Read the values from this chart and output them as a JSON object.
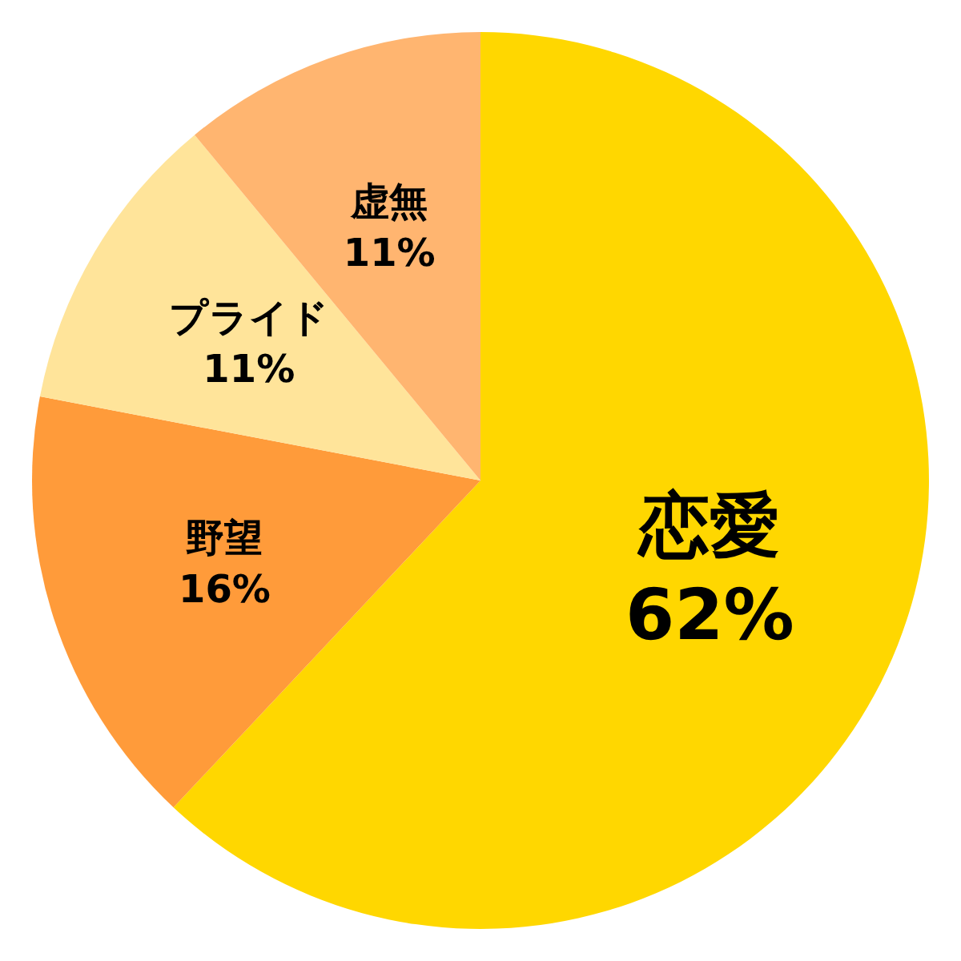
{
  "chart_data": {
    "type": "pie",
    "categories": [
      "恋愛",
      "野望",
      "プライド",
      "虚無"
    ],
    "values": [
      62,
      16,
      11,
      11
    ],
    "colors": [
      "#ffd700",
      "#ff9b3a",
      "#ffe49a",
      "#ffb570"
    ],
    "value_labels": [
      "62%",
      "16%",
      "11%",
      "11%"
    ]
  }
}
